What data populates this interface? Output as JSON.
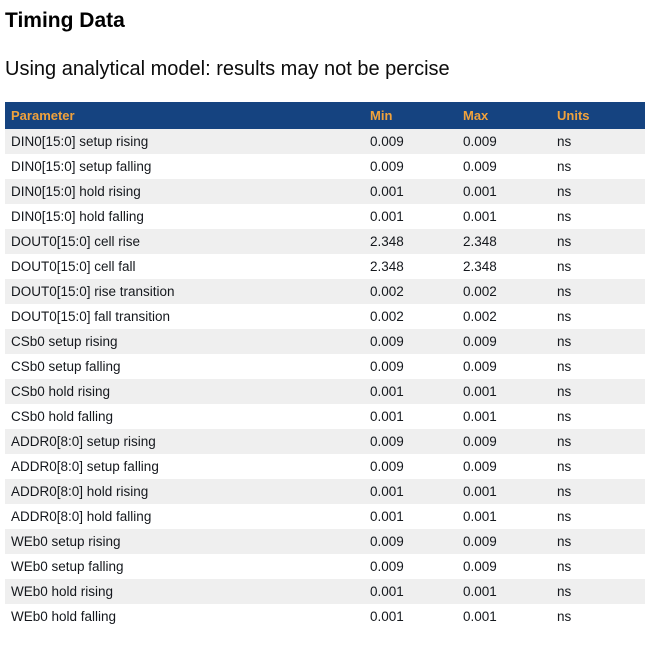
{
  "page": {
    "title": "Timing Data",
    "subtitle": "Using analytical model: results may not be percise"
  },
  "colors": {
    "header_bg": "#154380",
    "header_fg": "#f0a23c",
    "row_stripe": "#efefef",
    "row_text": "#15181d"
  },
  "table": {
    "columns": [
      "Parameter",
      "Min",
      "Max",
      "Units"
    ],
    "rows": [
      {
        "parameter": "DIN0[15:0] setup rising",
        "min": "0.009",
        "max": "0.009",
        "units": "ns"
      },
      {
        "parameter": "DIN0[15:0] setup falling",
        "min": "0.009",
        "max": "0.009",
        "units": "ns"
      },
      {
        "parameter": "DIN0[15:0] hold rising",
        "min": "0.001",
        "max": "0.001",
        "units": "ns"
      },
      {
        "parameter": "DIN0[15:0] hold falling",
        "min": "0.001",
        "max": "0.001",
        "units": "ns"
      },
      {
        "parameter": "DOUT0[15:0] cell rise",
        "min": "2.348",
        "max": "2.348",
        "units": "ns"
      },
      {
        "parameter": "DOUT0[15:0] cell fall",
        "min": "2.348",
        "max": "2.348",
        "units": "ns"
      },
      {
        "parameter": "DOUT0[15:0] rise transition",
        "min": "0.002",
        "max": "0.002",
        "units": "ns"
      },
      {
        "parameter": "DOUT0[15:0] fall transition",
        "min": "0.002",
        "max": "0.002",
        "units": "ns"
      },
      {
        "parameter": "CSb0 setup rising",
        "min": "0.009",
        "max": "0.009",
        "units": "ns"
      },
      {
        "parameter": "CSb0 setup falling",
        "min": "0.009",
        "max": "0.009",
        "units": "ns"
      },
      {
        "parameter": "CSb0 hold rising",
        "min": "0.001",
        "max": "0.001",
        "units": "ns"
      },
      {
        "parameter": "CSb0 hold falling",
        "min": "0.001",
        "max": "0.001",
        "units": "ns"
      },
      {
        "parameter": "ADDR0[8:0] setup rising",
        "min": "0.009",
        "max": "0.009",
        "units": "ns"
      },
      {
        "parameter": "ADDR0[8:0] setup falling",
        "min": "0.009",
        "max": "0.009",
        "units": "ns"
      },
      {
        "parameter": "ADDR0[8:0] hold rising",
        "min": "0.001",
        "max": "0.001",
        "units": "ns"
      },
      {
        "parameter": "ADDR0[8:0] hold falling",
        "min": "0.001",
        "max": "0.001",
        "units": "ns"
      },
      {
        "parameter": "WEb0 setup rising",
        "min": "0.009",
        "max": "0.009",
        "units": "ns"
      },
      {
        "parameter": "WEb0 setup falling",
        "min": "0.009",
        "max": "0.009",
        "units": "ns"
      },
      {
        "parameter": "WEb0 hold rising",
        "min": "0.001",
        "max": "0.001",
        "units": "ns"
      },
      {
        "parameter": "WEb0 hold falling",
        "min": "0.001",
        "max": "0.001",
        "units": "ns"
      }
    ]
  }
}
